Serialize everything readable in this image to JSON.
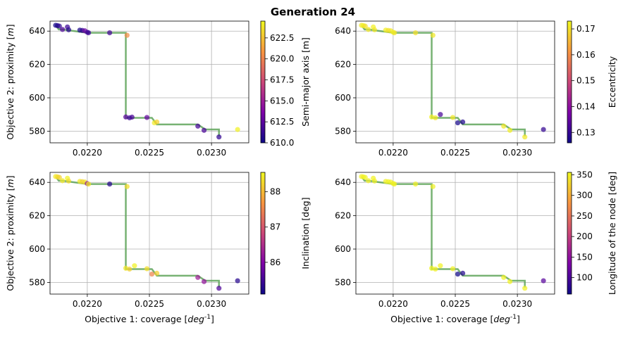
{
  "figure": {
    "suptitle": "Generation 24"
  },
  "chart_data": [
    {
      "type": "scatter",
      "panel": "top-left",
      "xlabel": "",
      "ylabel": "Objective 2: proximity [$m$]",
      "xlim": [
        0.0217,
        0.0233
      ],
      "ylim": [
        573,
        646
      ],
      "xticks": [
        "0.0220",
        "0.0225",
        "0.0230"
      ],
      "yticks": [
        "580",
        "600",
        "620",
        "640"
      ],
      "grid": true,
      "colorbar": {
        "label": "Semi-major axis [m]",
        "min": 610.0,
        "max": 624.5,
        "ticks": [
          "610.0",
          "612.5",
          "615.0",
          "617.5",
          "620.0",
          "622.5"
        ],
        "colormap": "plasma"
      },
      "front_color": "#5fa55a",
      "front": {
        "x": [
          0.02175,
          0.02177,
          0.0218,
          0.0219,
          0.022,
          0.02231,
          0.02231,
          0.02252,
          0.02256,
          0.02289,
          0.02295,
          0.02306,
          0.02306
        ],
        "y": [
          643,
          641,
          641,
          640,
          639,
          639,
          588,
          588,
          584,
          584,
          581,
          581,
          577
        ]
      },
      "points": [
        {
          "x": 0.021745,
          "y": 643.5,
          "c": 610.2
        },
        {
          "x": 0.02176,
          "y": 643.3,
          "c": 610.6
        },
        {
          "x": 0.021775,
          "y": 643.0,
          "c": 611.0
        },
        {
          "x": 0.0218,
          "y": 641.0,
          "c": 612.2
        },
        {
          "x": 0.02184,
          "y": 642.5,
          "c": 611.5
        },
        {
          "x": 0.02185,
          "y": 640.8,
          "c": 610.8
        },
        {
          "x": 0.02194,
          "y": 640.6,
          "c": 610.4
        },
        {
          "x": 0.02196,
          "y": 640.4,
          "c": 611.2
        },
        {
          "x": 0.02198,
          "y": 640.2,
          "c": 613.0
        },
        {
          "x": 0.022,
          "y": 639.3,
          "c": 612.0
        },
        {
          "x": 0.02201,
          "y": 639.0,
          "c": 611.4
        },
        {
          "x": 0.02218,
          "y": 639.0,
          "c": 611.8
        },
        {
          "x": 0.02232,
          "y": 637.5,
          "c": 620.5
        },
        {
          "x": 0.02231,
          "y": 588.5,
          "c": 612.5
        },
        {
          "x": 0.02234,
          "y": 588.0,
          "c": 611.5
        },
        {
          "x": 0.02236,
          "y": 588.4,
          "c": 612.0
        },
        {
          "x": 0.02248,
          "y": 588.2,
          "c": 612.8
        },
        {
          "x": 0.02254,
          "y": 585.0,
          "c": 624.0
        },
        {
          "x": 0.02256,
          "y": 585.5,
          "c": 623.0
        },
        {
          "x": 0.02289,
          "y": 583.0,
          "c": 611.8
        },
        {
          "x": 0.02294,
          "y": 580.5,
          "c": 612.0
        },
        {
          "x": 0.02306,
          "y": 576.5,
          "c": 611.2
        },
        {
          "x": 0.02321,
          "y": 581.0,
          "c": 624.2
        }
      ]
    },
    {
      "type": "scatter",
      "panel": "top-right",
      "xlabel": "",
      "ylabel": "",
      "xlim": [
        0.0217,
        0.0233
      ],
      "ylim": [
        573,
        646
      ],
      "xticks": [
        "0.0220",
        "0.0225",
        "0.0230"
      ],
      "yticks": [
        "580",
        "600",
        "620",
        "640"
      ],
      "grid": true,
      "colorbar": {
        "label": "Eccentricity",
        "min": 0.126,
        "max": 0.173,
        "ticks": [
          "0.13",
          "0.14",
          "0.15",
          "0.16",
          "0.17"
        ],
        "colormap": "plasma"
      },
      "front_color": "#5fa55a",
      "front": {
        "x": [
          0.02175,
          0.02177,
          0.0218,
          0.0219,
          0.022,
          0.02231,
          0.02231,
          0.02252,
          0.02256,
          0.02289,
          0.02295,
          0.02306,
          0.02306
        ],
        "y": [
          643,
          641,
          641,
          640,
          639,
          639,
          588,
          588,
          584,
          584,
          581,
          581,
          577
        ]
      },
      "points": [
        {
          "x": 0.021745,
          "y": 643.5,
          "c": 0.171
        },
        {
          "x": 0.02176,
          "y": 643.3,
          "c": 0.172
        },
        {
          "x": 0.021775,
          "y": 643.0,
          "c": 0.17
        },
        {
          "x": 0.0218,
          "y": 641.0,
          "c": 0.171
        },
        {
          "x": 0.02184,
          "y": 642.5,
          "c": 0.172
        },
        {
          "x": 0.02185,
          "y": 640.8,
          "c": 0.171
        },
        {
          "x": 0.02194,
          "y": 640.6,
          "c": 0.172
        },
        {
          "x": 0.02196,
          "y": 640.4,
          "c": 0.17
        },
        {
          "x": 0.02198,
          "y": 640.2,
          "c": 0.171
        },
        {
          "x": 0.022,
          "y": 639.3,
          "c": 0.172
        },
        {
          "x": 0.02201,
          "y": 639.0,
          "c": 0.171
        },
        {
          "x": 0.02218,
          "y": 639.0,
          "c": 0.17
        },
        {
          "x": 0.02232,
          "y": 637.5,
          "c": 0.171
        },
        {
          "x": 0.02231,
          "y": 588.5,
          "c": 0.172
        },
        {
          "x": 0.02234,
          "y": 588.0,
          "c": 0.171
        },
        {
          "x": 0.02238,
          "y": 590.0,
          "c": 0.132
        },
        {
          "x": 0.02248,
          "y": 588.2,
          "c": 0.171
        },
        {
          "x": 0.02252,
          "y": 585.0,
          "c": 0.127
        },
        {
          "x": 0.02256,
          "y": 585.5,
          "c": 0.128
        },
        {
          "x": 0.02289,
          "y": 583.0,
          "c": 0.171
        },
        {
          "x": 0.02294,
          "y": 580.5,
          "c": 0.172
        },
        {
          "x": 0.02306,
          "y": 576.5,
          "c": 0.171
        },
        {
          "x": 0.02321,
          "y": 581.0,
          "c": 0.13
        }
      ]
    },
    {
      "type": "scatter",
      "panel": "bottom-left",
      "xlabel": "Objective 1: coverage [$deg^{-1}$]",
      "ylabel": "Objective 2: proximity [$m$]",
      "xlim": [
        0.0217,
        0.0233
      ],
      "ylim": [
        573,
        646
      ],
      "xticks": [
        "0.0220",
        "0.0225",
        "0.0230"
      ],
      "yticks": [
        "580",
        "600",
        "620",
        "640"
      ],
      "grid": true,
      "colorbar": {
        "label": "Inclination [deg]",
        "min": 85.1,
        "max": 88.55,
        "ticks": [
          "86",
          "87",
          "88"
        ],
        "colormap": "plasma"
      },
      "front_color": "#5fa55a",
      "front": {
        "x": [
          0.02175,
          0.02177,
          0.0218,
          0.0219,
          0.022,
          0.02231,
          0.02231,
          0.02252,
          0.02256,
          0.02289,
          0.02295,
          0.02306,
          0.02306
        ],
        "y": [
          643,
          641,
          641,
          640,
          639,
          639,
          588,
          588,
          584,
          584,
          581,
          581,
          577
        ]
      },
      "points": [
        {
          "x": 0.021745,
          "y": 643.5,
          "c": 88.4
        },
        {
          "x": 0.02176,
          "y": 643.3,
          "c": 88.3
        },
        {
          "x": 0.021775,
          "y": 643.0,
          "c": 88.2
        },
        {
          "x": 0.0218,
          "y": 641.0,
          "c": 88.4
        },
        {
          "x": 0.02184,
          "y": 642.5,
          "c": 88.5
        },
        {
          "x": 0.02185,
          "y": 640.8,
          "c": 88.3
        },
        {
          "x": 0.02194,
          "y": 640.6,
          "c": 88.4
        },
        {
          "x": 0.02196,
          "y": 640.4,
          "c": 88.2
        },
        {
          "x": 0.02198,
          "y": 640.2,
          "c": 88.3
        },
        {
          "x": 0.022,
          "y": 639.3,
          "c": 86.2
        },
        {
          "x": 0.02201,
          "y": 639.0,
          "c": 88.4
        },
        {
          "x": 0.02218,
          "y": 639.0,
          "c": 85.3
        },
        {
          "x": 0.02232,
          "y": 637.5,
          "c": 88.3
        },
        {
          "x": 0.02231,
          "y": 588.5,
          "c": 88.4
        },
        {
          "x": 0.02234,
          "y": 588.0,
          "c": 88.2
        },
        {
          "x": 0.02238,
          "y": 590.0,
          "c": 88.5
        },
        {
          "x": 0.02248,
          "y": 588.2,
          "c": 88.3
        },
        {
          "x": 0.02252,
          "y": 585.0,
          "c": 87.5
        },
        {
          "x": 0.02256,
          "y": 585.5,
          "c": 88.2
        },
        {
          "x": 0.02289,
          "y": 583.0,
          "c": 86.3
        },
        {
          "x": 0.02294,
          "y": 580.5,
          "c": 86.2
        },
        {
          "x": 0.02306,
          "y": 576.5,
          "c": 85.6
        },
        {
          "x": 0.02321,
          "y": 581.0,
          "c": 85.3
        }
      ]
    },
    {
      "type": "scatter",
      "panel": "bottom-right",
      "xlabel": "Objective 1: coverage [$deg^{-1}$]",
      "ylabel": "",
      "xlim": [
        0.0217,
        0.0233
      ],
      "ylim": [
        573,
        646
      ],
      "xticks": [
        "0.0220",
        "0.0225",
        "0.0230"
      ],
      "yticks": [
        "580",
        "600",
        "620",
        "640"
      ],
      "grid": true,
      "colorbar": {
        "label": "Longitude of the node [deg]",
        "min": 60,
        "max": 356,
        "ticks": [
          "100",
          "150",
          "200",
          "250",
          "300",
          "350"
        ],
        "colormap": "plasma"
      },
      "front_color": "#5fa55a",
      "front": {
        "x": [
          0.02175,
          0.02177,
          0.0218,
          0.0219,
          0.022,
          0.02231,
          0.02231,
          0.02252,
          0.02256,
          0.02289,
          0.02295,
          0.02306,
          0.02306
        ],
        "y": [
          643,
          641,
          641,
          640,
          639,
          639,
          588,
          588,
          584,
          584,
          581,
          581,
          577
        ]
      },
      "points": [
        {
          "x": 0.021745,
          "y": 643.5,
          "c": 350
        },
        {
          "x": 0.02176,
          "y": 643.3,
          "c": 348
        },
        {
          "x": 0.021775,
          "y": 643.0,
          "c": 352
        },
        {
          "x": 0.0218,
          "y": 641.0,
          "c": 349
        },
        {
          "x": 0.02184,
          "y": 642.5,
          "c": 351
        },
        {
          "x": 0.02185,
          "y": 640.8,
          "c": 350
        },
        {
          "x": 0.02194,
          "y": 640.6,
          "c": 348
        },
        {
          "x": 0.02196,
          "y": 640.4,
          "c": 352
        },
        {
          "x": 0.02198,
          "y": 640.2,
          "c": 350
        },
        {
          "x": 0.022,
          "y": 639.3,
          "c": 349
        },
        {
          "x": 0.02201,
          "y": 639.0,
          "c": 351
        },
        {
          "x": 0.02218,
          "y": 639.0,
          "c": 350
        },
        {
          "x": 0.02232,
          "y": 637.5,
          "c": 349
        },
        {
          "x": 0.02231,
          "y": 588.5,
          "c": 352
        },
        {
          "x": 0.02234,
          "y": 588.0,
          "c": 350
        },
        {
          "x": 0.02238,
          "y": 590.0,
          "c": 351
        },
        {
          "x": 0.02248,
          "y": 588.2,
          "c": 349
        },
        {
          "x": 0.02252,
          "y": 585.0,
          "c": 62
        },
        {
          "x": 0.02256,
          "y": 585.5,
          "c": 75
        },
        {
          "x": 0.02289,
          "y": 583.0,
          "c": 350
        },
        {
          "x": 0.02294,
          "y": 580.5,
          "c": 351
        },
        {
          "x": 0.02306,
          "y": 576.5,
          "c": 349
        },
        {
          "x": 0.02321,
          "y": 581.0,
          "c": 110
        }
      ]
    }
  ]
}
